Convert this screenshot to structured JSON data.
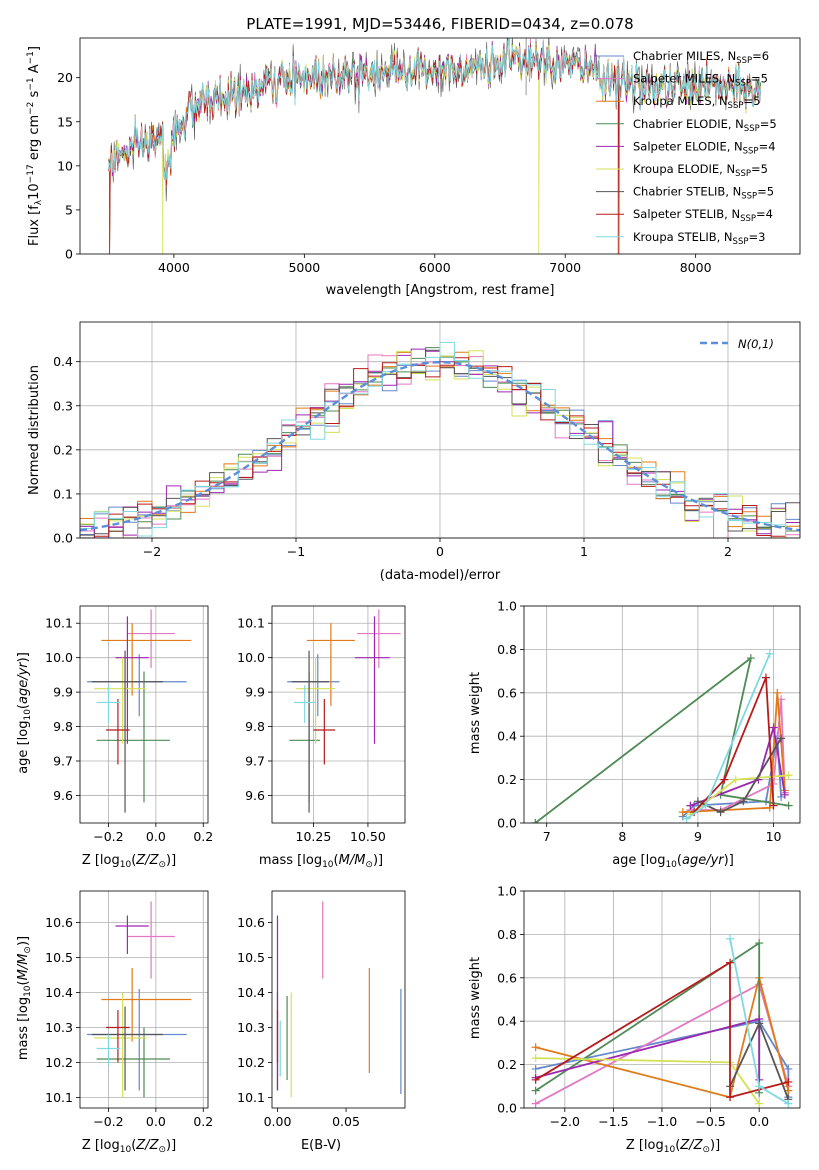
{
  "title": "PLATE=1991, MJD=53446, FIBERID=0434, z=0.078",
  "models": [
    {
      "name": "Chabrier MILES",
      "nssp": "6",
      "color": "#6688cc"
    },
    {
      "name": "Salpeter MILES",
      "nssp": "5",
      "color": "#e377c2"
    },
    {
      "name": "Kroupa MILES",
      "nssp": "5",
      "color": "#e07b1a"
    },
    {
      "name": "Chabrier ELODIE",
      "nssp": "5",
      "color": "#4e8a55"
    },
    {
      "name": "Salpeter ELODIE",
      "nssp": "4",
      "color": "#9c27b0"
    },
    {
      "name": "Kroupa ELODIE",
      "nssp": "5",
      "color": "#d4e157"
    },
    {
      "name": "Chabrier STELIB",
      "nssp": "5",
      "color": "#555555"
    },
    {
      "name": "Salpeter STELIB",
      "nssp": "4",
      "color": "#b71c1c"
    },
    {
      "name": "Kroupa STELIB",
      "nssp": "3",
      "color": "#80d8e0"
    }
  ],
  "chart_data": [
    {
      "id": "spectrum",
      "type": "line",
      "xlabel": "wavelength [Angstrom, rest frame]",
      "ylabel": "Flux [f_λ 10^-17 erg cm^-2 s^-1 A^-1]",
      "xlim": [
        3280,
        8800
      ],
      "ylim": [
        0,
        24.5
      ],
      "xticks": [
        4000,
        5000,
        6000,
        7000,
        8000
      ],
      "yticks": [
        0,
        5,
        10,
        15,
        20
      ],
      "grid": false,
      "legend": "right",
      "continuum": [
        [
          3500,
          10.5
        ],
        [
          3700,
          12
        ],
        [
          3900,
          13
        ],
        [
          4000,
          14
        ],
        [
          4150,
          16.5
        ],
        [
          4300,
          17.5
        ],
        [
          4500,
          18
        ],
        [
          4800,
          19.5
        ],
        [
          5000,
          20
        ],
        [
          5300,
          20.5
        ],
        [
          5600,
          20.8
        ],
        [
          6000,
          21
        ],
        [
          6300,
          21.3
        ],
        [
          6600,
          21.7
        ],
        [
          6900,
          21.6
        ],
        [
          7200,
          21
        ],
        [
          7400,
          19.5
        ],
        [
          7700,
          18.8
        ],
        [
          8000,
          19.2
        ],
        [
          8300,
          18.8
        ],
        [
          8500,
          18.3
        ]
      ]
    },
    {
      "id": "residuals",
      "type": "histogram",
      "xlabel": "(data-model)/error",
      "ylabel": "Normed distribution",
      "xlim": [
        -2.5,
        2.5
      ],
      "ylim": [
        0,
        0.49
      ],
      "xticks": [
        -2,
        -1,
        0,
        1,
        2
      ],
      "yticks": [
        0.0,
        0.1,
        0.2,
        0.3,
        0.4
      ],
      "grid": true,
      "legend": "top-right",
      "reference": {
        "label": "N(0,1)",
        "mean": 0,
        "sigma": 1,
        "color": "#5b8fd9"
      }
    },
    {
      "id": "age-vs-Z",
      "type": "errorbar",
      "xlabel": "Z [log10(Z/Z⊙)]",
      "ylabel": "age [log10(age/yr)]",
      "xlim": [
        -0.32,
        0.22
      ],
      "ylim": [
        9.52,
        10.15
      ],
      "xticks": [
        -0.2,
        0.0,
        0.2
      ],
      "yticks": [
        9.6,
        9.7,
        9.8,
        9.9,
        10.0,
        10.1
      ],
      "grid": true,
      "points": [
        {
          "x": -0.07,
          "y": 9.93,
          "xerr": [
            0.22,
            0.2
          ],
          "yerr": [
            0.1,
            0.08
          ]
        },
        {
          "x": -0.02,
          "y": 10.07,
          "xerr": [
            0.1,
            0.1
          ],
          "yerr": [
            0.1,
            0.07
          ]
        },
        {
          "x": -0.1,
          "y": 10.05,
          "xerr": [
            0.13,
            0.25
          ],
          "yerr": [
            0.16,
            0.05
          ]
        },
        {
          "x": -0.05,
          "y": 9.76,
          "xerr": [
            0.2,
            0.11
          ],
          "yerr": [
            0.18,
            0.2
          ]
        },
        {
          "x": -0.12,
          "y": 10.0,
          "xerr": [
            0.05,
            0.09
          ],
          "yerr": [
            0.25,
            0.12
          ]
        },
        {
          "x": -0.14,
          "y": 9.91,
          "xerr": [
            0.12,
            0.1
          ],
          "yerr": [
            0.16,
            0.09
          ]
        },
        {
          "x": -0.13,
          "y": 9.93,
          "xerr": [
            0.14,
            0.16
          ],
          "yerr": [
            0.38,
            0.09
          ]
        },
        {
          "x": -0.16,
          "y": 9.79,
          "xerr": [
            0.05,
            0.05
          ],
          "yerr": [
            0.1,
            0.09
          ]
        },
        {
          "x": -0.2,
          "y": 9.87,
          "xerr": [
            0.05,
            0.05
          ],
          "yerr": [
            0.06,
            0.05
          ]
        }
      ]
    },
    {
      "id": "age-vs-mass",
      "type": "errorbar",
      "xlabel": "mass [log10(M/M⊙)]",
      "xlim": [
        10.06,
        10.67
      ],
      "ylim": [
        9.52,
        10.15
      ],
      "xticks": [
        10.25,
        10.5
      ],
      "yticks": [
        9.6,
        9.7,
        9.8,
        9.9,
        10.0,
        10.1
      ],
      "grid": true,
      "points": [
        {
          "x": 10.27,
          "y": 9.93,
          "xerr": [
            0.14,
            0.1
          ],
          "yerr": [
            0.1,
            0.08
          ]
        },
        {
          "x": 10.55,
          "y": 10.07,
          "xerr": [
            0.1,
            0.1
          ],
          "yerr": [
            0.1,
            0.07
          ]
        },
        {
          "x": 10.33,
          "y": 10.05,
          "xerr": [
            0.11,
            0.11
          ],
          "yerr": [
            0.19,
            0.05
          ]
        },
        {
          "x": 10.23,
          "y": 9.76,
          "xerr": [
            0.09,
            0.05
          ],
          "yerr": [
            0.18,
            0.2
          ]
        },
        {
          "x": 10.53,
          "y": 10.0,
          "xerr": [
            0.09,
            0.07
          ],
          "yerr": [
            0.25,
            0.12
          ]
        },
        {
          "x": 10.26,
          "y": 9.91,
          "xerr": [
            0.09,
            0.09
          ],
          "yerr": [
            0.16,
            0.09
          ]
        },
        {
          "x": 10.23,
          "y": 9.93,
          "xerr": [
            0.08,
            0.09
          ],
          "yerr": [
            0.38,
            0.09
          ]
        },
        {
          "x": 10.3,
          "y": 9.79,
          "xerr": [
            0.05,
            0.05
          ],
          "yerr": [
            0.1,
            0.09
          ]
        },
        {
          "x": 10.21,
          "y": 9.87,
          "xerr": [
            0.05,
            0.05
          ],
          "yerr": [
            0.06,
            0.05
          ]
        }
      ]
    },
    {
      "id": "mass-weight-vs-age",
      "type": "line",
      "xlabel": "age [log10(age/yr)]",
      "ylabel": "mass weight",
      "xlim": [
        6.7,
        10.35
      ],
      "ylim": [
        0,
        1.0
      ],
      "xticks": [
        7,
        8,
        9,
        10
      ],
      "yticks": [
        0.0,
        0.2,
        0.4,
        0.6,
        0.8,
        1.0
      ],
      "grid": true,
      "series": [
        [
          [
            8.8,
            0.03
          ],
          [
            8.95,
            0.08
          ],
          [
            9.9,
            0.1
          ],
          [
            10.05,
            0.4
          ],
          [
            10.1,
            0.12
          ]
        ],
        [
          [
            8.9,
            0.06
          ],
          [
            9.3,
            0.06
          ],
          [
            10.0,
            0.18
          ],
          [
            10.1,
            0.57
          ],
          [
            10.15,
            0.14
          ]
        ],
        [
          [
            8.8,
            0.05
          ],
          [
            9.95,
            0.07
          ],
          [
            10.05,
            0.6
          ],
          [
            10.15,
            0.15
          ]
        ],
        [
          [
            6.85,
            0.0
          ],
          [
            9.7,
            0.76
          ],
          [
            9.3,
            0.13
          ],
          [
            10.2,
            0.08
          ]
        ],
        [
          [
            8.9,
            0.08
          ],
          [
            9.8,
            0.2
          ],
          [
            10.0,
            0.44
          ],
          [
            10.15,
            0.13
          ]
        ],
        [
          [
            8.9,
            0.04
          ],
          [
            9.5,
            0.2
          ],
          [
            10.2,
            0.22
          ]
        ],
        [
          [
            9.0,
            0.1
          ],
          [
            9.3,
            0.05
          ],
          [
            9.6,
            0.1
          ],
          [
            10.1,
            0.39
          ]
        ],
        [
          [
            8.95,
            0.05
          ],
          [
            9.35,
            0.2
          ],
          [
            9.9,
            0.67
          ],
          [
            10.0,
            0.08
          ]
        ],
        [
          [
            8.85,
            0.02
          ],
          [
            9.1,
            0.08
          ],
          [
            9.95,
            0.78
          ]
        ]
      ]
    },
    {
      "id": "mass-vs-Z",
      "type": "errorbar",
      "xlabel": "Z [log10(Z/Z⊙)]",
      "ylabel": "mass [log10(M/M⊙)]",
      "xlim": [
        -0.32,
        0.22
      ],
      "ylim": [
        10.07,
        10.69
      ],
      "xticks": [
        -0.2,
        0.0,
        0.2
      ],
      "yticks": [
        10.1,
        10.2,
        10.3,
        10.4,
        10.5,
        10.6
      ],
      "grid": true,
      "points": [
        {
          "x": -0.07,
          "y": 10.28,
          "xerr": [
            0.22,
            0.2
          ],
          "yerr": [
            0.16,
            0.13
          ]
        },
        {
          "x": -0.02,
          "y": 10.56,
          "xerr": [
            0.1,
            0.1
          ],
          "yerr": [
            0.12,
            0.1
          ]
        },
        {
          "x": -0.1,
          "y": 10.38,
          "xerr": [
            0.13,
            0.25
          ],
          "yerr": [
            0.12,
            0.09
          ]
        },
        {
          "x": -0.05,
          "y": 10.21,
          "xerr": [
            0.2,
            0.11
          ],
          "yerr": [
            0.11,
            0.09
          ]
        },
        {
          "x": -0.12,
          "y": 10.59,
          "xerr": [
            0.05,
            0.09
          ],
          "yerr": [
            0.08,
            0.03
          ]
        },
        {
          "x": -0.14,
          "y": 10.27,
          "xerr": [
            0.12,
            0.1
          ],
          "yerr": [
            0.17,
            0.13
          ]
        },
        {
          "x": -0.13,
          "y": 10.28,
          "xerr": [
            0.14,
            0.16
          ],
          "yerr": [
            0.16,
            0.08
          ]
        },
        {
          "x": -0.16,
          "y": 10.3,
          "xerr": [
            0.05,
            0.05
          ],
          "yerr": [
            0.1,
            0.05
          ]
        },
        {
          "x": -0.2,
          "y": 10.24,
          "xerr": [
            0.05,
            0.05
          ],
          "yerr": [
            0.05,
            0.04
          ]
        }
      ]
    },
    {
      "id": "mass-vs-EBV",
      "type": "errorbar",
      "xlabel": "E(B-V)",
      "xlim": [
        -0.004,
        0.093
      ],
      "ylim": [
        10.07,
        10.69
      ],
      "xticks": [
        0.0,
        0.05
      ],
      "yticks": [
        10.1,
        10.2,
        10.3,
        10.4,
        10.5,
        10.6
      ],
      "grid": false,
      "points": [
        {
          "x": 0.09,
          "y": 10.26,
          "xerr": [
            0,
            0
          ],
          "yerr": [
            0.15,
            0.15
          ]
        },
        {
          "x": 0.033,
          "y": 10.55,
          "xerr": [
            0,
            0
          ],
          "yerr": [
            0.11,
            0.11
          ]
        },
        {
          "x": 0.067,
          "y": 10.32,
          "xerr": [
            0,
            0
          ],
          "yerr": [
            0.15,
            0.15
          ]
        },
        {
          "x": 0.007,
          "y": 10.27,
          "xerr": [
            0,
            0
          ],
          "yerr": [
            0.12,
            0.12
          ]
        },
        {
          "x": 0.0,
          "y": 10.37,
          "xerr": [
            0,
            0
          ],
          "yerr": [
            0.25,
            0.25
          ]
        },
        {
          "x": 0.01,
          "y": 10.27,
          "xerr": [
            0,
            0
          ],
          "yerr": [
            0.17,
            0.13
          ]
        },
        {
          "x": 0.0,
          "y": 10.26,
          "xerr": [
            0,
            0
          ],
          "yerr": [
            0.14,
            0.14
          ]
        },
        {
          "x": 0.0,
          "y": 10.3,
          "xerr": [
            0,
            0
          ],
          "yerr": [
            0.1,
            0.05
          ]
        },
        {
          "x": 0.002,
          "y": 10.24,
          "xerr": [
            0,
            0
          ],
          "yerr": [
            0.08,
            0.08
          ]
        }
      ]
    },
    {
      "id": "mass-weight-vs-Z",
      "type": "line",
      "xlabel": "Z [log10(Z/Z⊙)]",
      "ylabel": "mass weight",
      "xlim": [
        -2.42,
        0.42
      ],
      "ylim": [
        0,
        1.0
      ],
      "xticks": [
        -2.0,
        -1.5,
        -1.0,
        -0.5,
        0.0
      ],
      "yticks": [
        0.0,
        0.2,
        0.4,
        0.6,
        0.8,
        1.0
      ],
      "grid": true,
      "series": [
        [
          [
            -2.3,
            0.18
          ],
          [
            0.0,
            0.4
          ],
          [
            0.3,
            0.18
          ],
          [
            0.3,
            0.05
          ]
        ],
        [
          [
            -2.3,
            0.02
          ],
          [
            0.0,
            0.57
          ],
          [
            0.3,
            0.1
          ]
        ],
        [
          [
            -2.3,
            0.28
          ],
          [
            -0.3,
            0.05
          ],
          [
            0.0,
            0.6
          ],
          [
            0.3,
            0.08
          ]
        ],
        [
          [
            -2.3,
            0.08
          ],
          [
            0.0,
            0.76
          ],
          [
            0.0,
            0.07
          ]
        ],
        [
          [
            -2.3,
            0.14
          ],
          [
            0.0,
            0.41
          ],
          [
            0.0,
            0.13
          ]
        ],
        [
          [
            -2.3,
            0.23
          ],
          [
            -0.3,
            0.21
          ],
          [
            0.0,
            0.02
          ]
        ],
        [
          [
            -0.3,
            0.1
          ],
          [
            0.0,
            0.39
          ],
          [
            0.3,
            0.04
          ]
        ],
        [
          [
            -2.3,
            0.13
          ],
          [
            -0.3,
            0.67
          ],
          [
            -0.3,
            0.05
          ],
          [
            0.3,
            0.12
          ]
        ],
        [
          [
            -0.3,
            0.78
          ],
          [
            0.0,
            0.1
          ],
          [
            0.3,
            0.02
          ]
        ]
      ]
    }
  ]
}
